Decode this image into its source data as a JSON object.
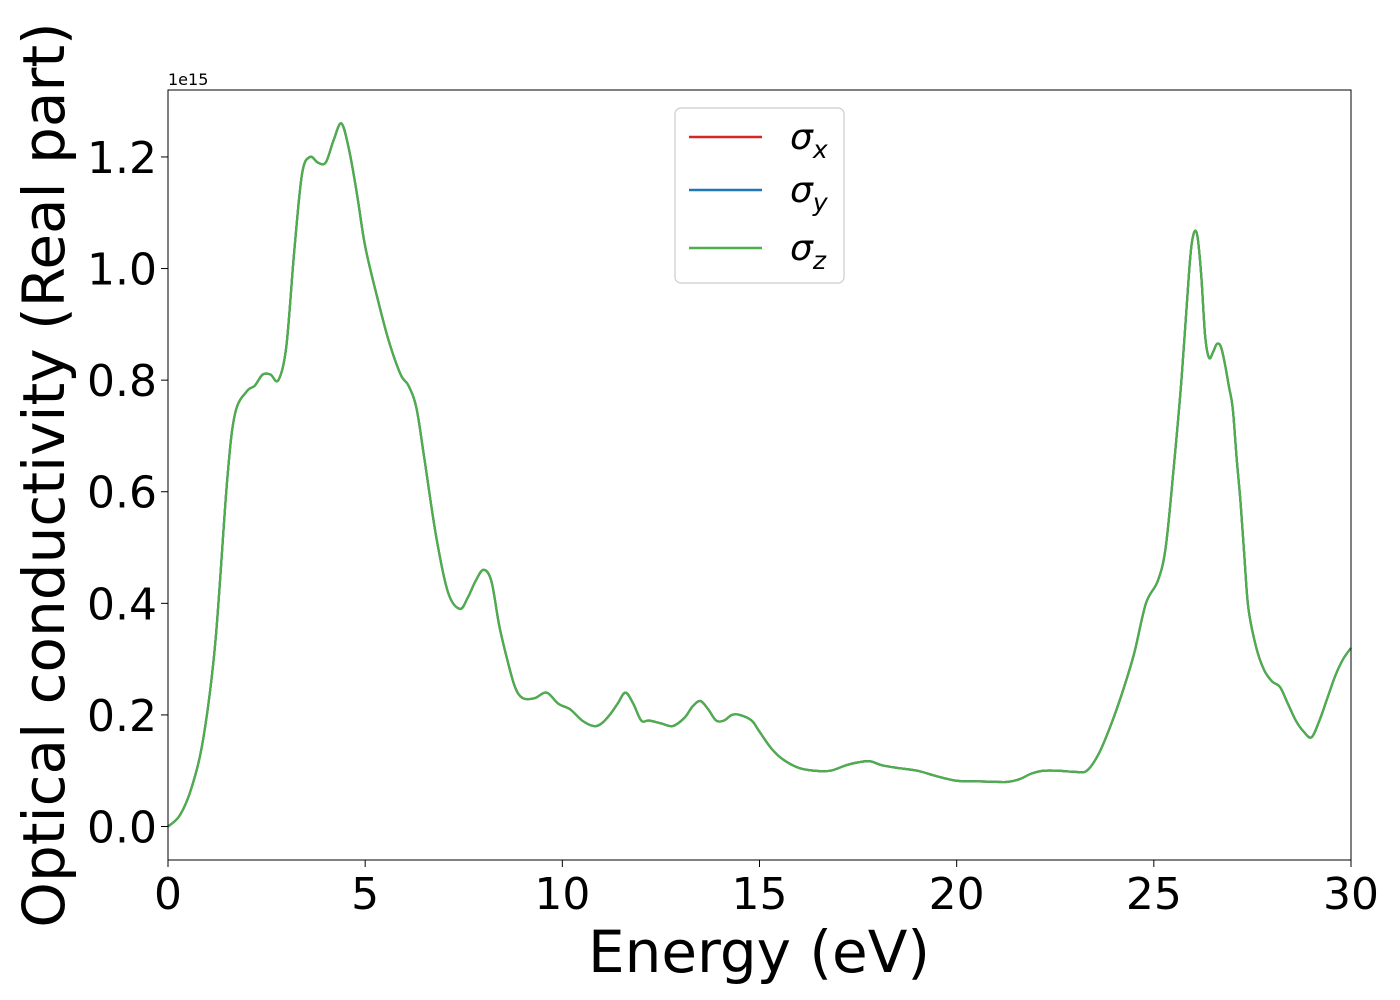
{
  "chart_data": {
    "type": "line",
    "xlabel": "Energy (eV)",
    "ylabel": "Optical conductivity (Real part)",
    "offset_text": "1e15",
    "xlim": [
      0,
      30
    ],
    "ylim": [
      -0.06,
      1.32
    ],
    "y_multiplier": 1000000000000000.0,
    "xticks": [
      0,
      5,
      10,
      15,
      20,
      25,
      30
    ],
    "xtick_labels": [
      "0",
      "5",
      "10",
      "15",
      "20",
      "25",
      "30"
    ],
    "yticks": [
      0.0,
      0.2,
      0.4,
      0.6,
      0.8,
      1.0,
      1.2
    ],
    "ytick_labels": [
      "0.0",
      "0.2",
      "0.4",
      "0.6",
      "0.8",
      "1.0",
      "1.2"
    ],
    "grid": false,
    "legend_position": "upper center",
    "series": [
      {
        "name": "σx",
        "symbol": "σ",
        "subscript": "x",
        "color": "#d62728"
      },
      {
        "name": "σy",
        "symbol": "σ",
        "subscript": "y",
        "color": "#1f77b4"
      },
      {
        "name": "σz",
        "symbol": "σ",
        "subscript": "z",
        "color": "#4daf4a"
      }
    ],
    "x": [
      0,
      0.3,
      0.6,
      0.9,
      1.2,
      1.5,
      1.7,
      2.0,
      2.2,
      2.4,
      2.6,
      2.8,
      3.0,
      3.2,
      3.4,
      3.6,
      3.8,
      4.0,
      4.2,
      4.4,
      4.6,
      4.8,
      5.0,
      5.3,
      5.6,
      5.9,
      6.1,
      6.3,
      6.5,
      6.8,
      7.1,
      7.4,
      7.6,
      7.8,
      8.0,
      8.2,
      8.4,
      8.6,
      8.8,
      9.0,
      9.3,
      9.6,
      9.9,
      10.2,
      10.5,
      10.8,
      11.0,
      11.2,
      11.4,
      11.6,
      11.8,
      12.0,
      12.2,
      12.5,
      12.8,
      13.1,
      13.3,
      13.5,
      13.7,
      13.9,
      14.1,
      14.3,
      14.5,
      14.8,
      15.0,
      15.3,
      15.6,
      16.0,
      16.4,
      16.8,
      17.2,
      17.5,
      17.8,
      18.1,
      18.5,
      19.0,
      19.5,
      20.0,
      20.5,
      21.0,
      21.3,
      21.6,
      21.9,
      22.2,
      22.6,
      23.0,
      23.3,
      23.6,
      23.9,
      24.2,
      24.5,
      24.8,
      25.1,
      25.3,
      25.5,
      25.7,
      25.9,
      26.0,
      26.1,
      26.2,
      26.3,
      26.4,
      26.5,
      26.6,
      26.7,
      26.8,
      26.9,
      27.0,
      27.1,
      27.2,
      27.3,
      27.4,
      27.6,
      27.8,
      28.0,
      28.2,
      28.4,
      28.6,
      28.8,
      29.0,
      29.2,
      29.4,
      29.6,
      29.8,
      30.0
    ],
    "values": [
      0.0,
      0.02,
      0.07,
      0.16,
      0.33,
      0.62,
      0.74,
      0.78,
      0.79,
      0.81,
      0.81,
      0.8,
      0.86,
      1.03,
      1.17,
      1.2,
      1.19,
      1.19,
      1.23,
      1.26,
      1.21,
      1.13,
      1.04,
      0.95,
      0.87,
      0.81,
      0.79,
      0.75,
      0.66,
      0.52,
      0.42,
      0.39,
      0.41,
      0.44,
      0.46,
      0.44,
      0.36,
      0.3,
      0.25,
      0.23,
      0.23,
      0.24,
      0.22,
      0.21,
      0.19,
      0.18,
      0.185,
      0.2,
      0.22,
      0.24,
      0.22,
      0.19,
      0.19,
      0.185,
      0.18,
      0.195,
      0.215,
      0.225,
      0.21,
      0.19,
      0.19,
      0.2,
      0.2,
      0.19,
      0.17,
      0.14,
      0.12,
      0.105,
      0.1,
      0.1,
      0.11,
      0.115,
      0.117,
      0.11,
      0.105,
      0.1,
      0.09,
      0.082,
      0.081,
      0.08,
      0.08,
      0.085,
      0.095,
      0.1,
      0.1,
      0.098,
      0.1,
      0.13,
      0.18,
      0.24,
      0.31,
      0.4,
      0.44,
      0.5,
      0.64,
      0.8,
      1.0,
      1.06,
      1.06,
      0.99,
      0.88,
      0.84,
      0.85,
      0.865,
      0.86,
      0.83,
      0.79,
      0.75,
      0.66,
      0.58,
      0.48,
      0.39,
      0.32,
      0.28,
      0.26,
      0.25,
      0.22,
      0.19,
      0.17,
      0.16,
      0.19,
      0.23,
      0.27,
      0.3,
      0.32
    ]
  }
}
